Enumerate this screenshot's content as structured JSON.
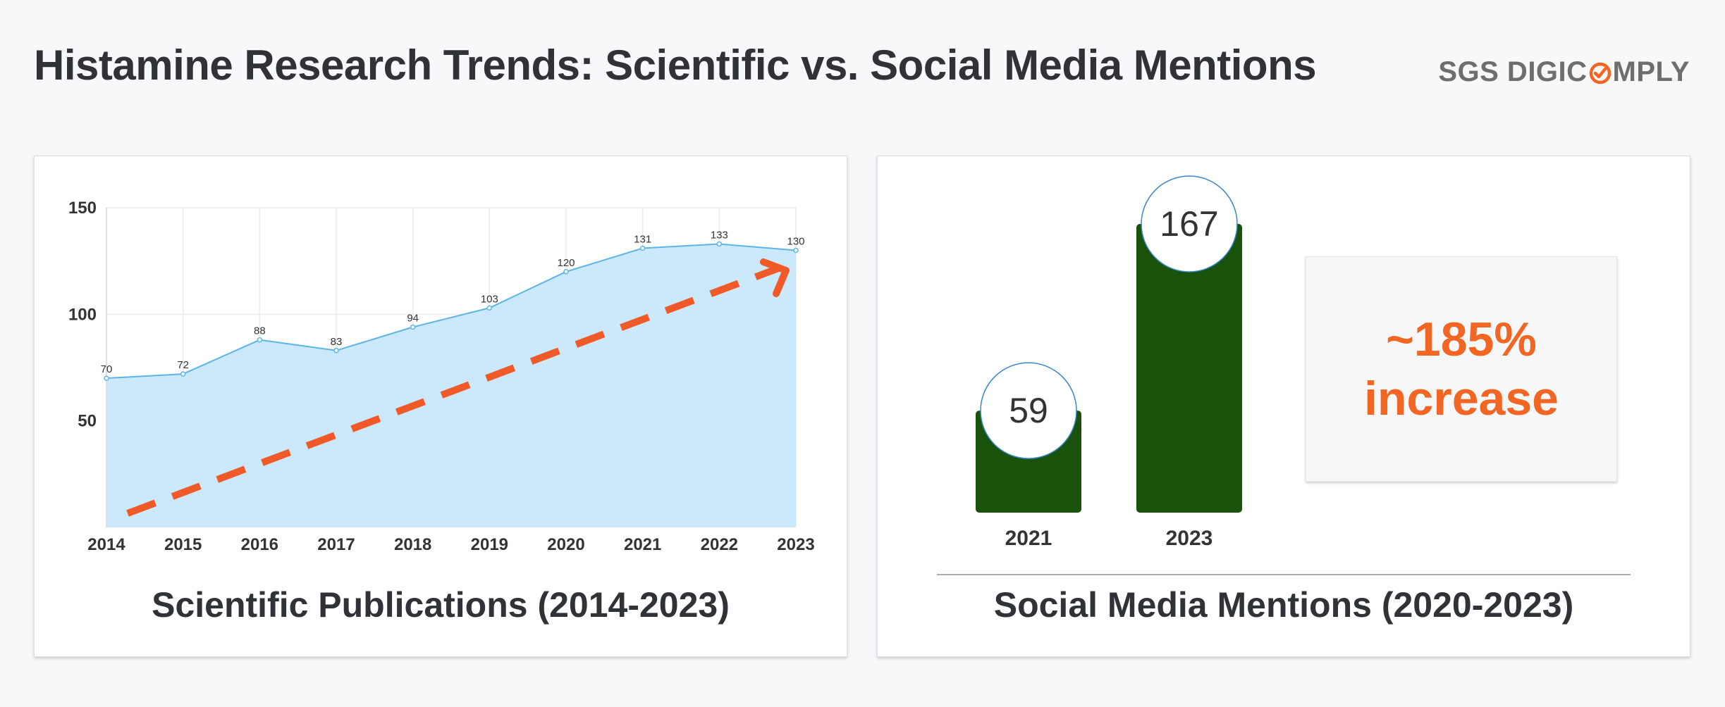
{
  "header": {
    "title": "Histamine Research Trends: Scientific vs. Social Media Mentions",
    "logo_text_1": "SGS DIGIC",
    "logo_text_2": "MPLY"
  },
  "colors": {
    "area_fill": "#cce8fb",
    "line": "#5bb5e6",
    "trend_arrow": "#f05a28",
    "bar": "#19520b",
    "accent": "#f26522"
  },
  "left_panel": {
    "caption": "Scientific Publications (2014-2023)"
  },
  "right_panel": {
    "caption": "Social Media Mentions (2020-2023)",
    "increase_line1": "~185%",
    "increase_line2": "increase"
  },
  "chart_data": [
    {
      "type": "area",
      "title": "Scientific Publications (2014-2023)",
      "x": [
        "2014",
        "2015",
        "2016",
        "2017",
        "2018",
        "2019",
        "2020",
        "2021",
        "2022",
        "2023"
      ],
      "values": [
        70,
        72,
        88,
        83,
        94,
        103,
        120,
        131,
        133,
        130
      ],
      "data_labels": [
        "70",
        "72",
        "88",
        "83",
        "94",
        "103",
        "120",
        "131",
        "133",
        "130"
      ],
      "yticks": [
        50,
        100,
        150
      ],
      "ytick_labels": [
        "50",
        "100",
        "150"
      ],
      "ylim": [
        0,
        150
      ],
      "grid": true,
      "annotation": "upward trend arrow"
    },
    {
      "type": "bar",
      "title": "Social Media Mentions (2020-2023)",
      "categories": [
        "2021",
        "2023"
      ],
      "values": [
        59,
        167
      ],
      "data_labels": [
        "59",
        "167"
      ],
      "annotation": "~185% increase"
    }
  ]
}
